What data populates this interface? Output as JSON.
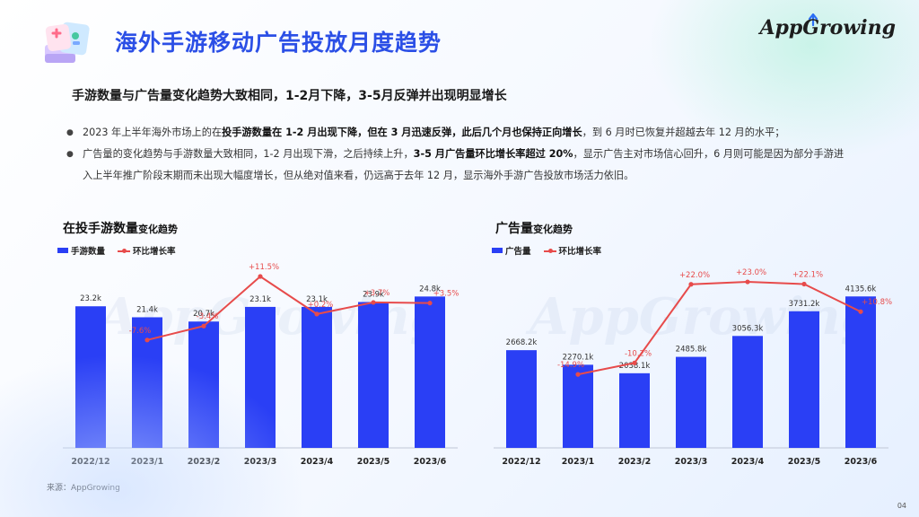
{
  "header": {
    "title": "海外手游移动广告投放月度趋势",
    "brand": "AppGrowing"
  },
  "subtitle": "手游数量与广告量变化趋势大致相同，1-2月下降，3-5月反弹并出现明显增长",
  "bullets": [
    [
      {
        "t": "2023 年上半年海外市场上的在",
        "b": false
      },
      {
        "t": "投手游数量在 1-2 月出现下降，但在 3 月迅速反弹，此后几个月也保持正向增长",
        "b": true
      },
      {
        "t": "，到 6 月时已恢复并超越去年 12 月的水平；",
        "b": false
      }
    ],
    [
      {
        "t": "广告量的变化趋势与手游数量大致相同，1-2 月出现下滑，之后持续上升，",
        "b": false
      },
      {
        "t": "3-5 月广告量环比增长率超过 20%",
        "b": true
      },
      {
        "t": "，显示广告主对市场信心回升，6 月则可能是因为部分手游进入上半年推广阶段末期而未出现大幅度增长，但从绝对值来看，仍远高于去年 12 月，显示海外手游广告投放市场活力依旧。",
        "b": false
      }
    ]
  ],
  "charts": [
    {
      "title_main": "在投手游数量",
      "title_small": "变化趋势",
      "legend_bar": "手游数量",
      "legend_line": "环比增长率"
    },
    {
      "title_main": "广告量",
      "title_small": "变化趋势",
      "legend_bar": "广告量",
      "legend_line": "环比增长率"
    }
  ],
  "chart_data": [
    {
      "type": "bar",
      "categories": [
        "2022/12",
        "2023/1",
        "2023/2",
        "2023/3",
        "2023/4",
        "2023/5",
        "2023/6"
      ],
      "series": [
        {
          "name": "手游数量",
          "type": "bar",
          "values": [
            23.2,
            21.4,
            20.7,
            23.1,
            23.1,
            23.9,
            24.8
          ],
          "labels": [
            "23.2k",
            "21.4k",
            "20.7k",
            "23.1k",
            "23.1k",
            "23.9k",
            "24.8k"
          ]
        },
        {
          "name": "环比增长率",
          "type": "line",
          "values": [
            null,
            -7.6,
            -3.4,
            11.5,
            0.2,
            3.7,
            3.5
          ],
          "labels": [
            "",
            "-7.6%",
            "-3.4%",
            "+11.5%",
            "+0.2%",
            "+3.7%",
            "+3.5%"
          ]
        }
      ],
      "title": "在投手游数量变化趋势",
      "bar_range": [
        0,
        30
      ],
      "line_range": [
        -40,
        15
      ],
      "legend": "top-left",
      "grid": false
    },
    {
      "type": "bar",
      "categories": [
        "2022/12",
        "2023/1",
        "2023/2",
        "2023/3",
        "2023/4",
        "2023/5",
        "2023/6"
      ],
      "series": [
        {
          "name": "广告量",
          "type": "bar",
          "values": [
            2668.2,
            2270.1,
            2038.1,
            2485.8,
            3056.3,
            3731.2,
            4135.6
          ],
          "labels": [
            "2668.2k",
            "2270.1k",
            "2038.1k",
            "2485.8k",
            "3056.3k",
            "3731.2k",
            "4135.6k"
          ]
        },
        {
          "name": "环比增长率",
          "type": "line",
          "values": [
            null,
            -14.9,
            -10.2,
            22.0,
            23.0,
            22.1,
            10.8
          ],
          "labels": [
            "",
            "-14.9%",
            "-10.2%",
            "+22.0%",
            "+23.0%",
            "+22.1%",
            "+10.8%"
          ]
        }
      ],
      "title": "广告量变化趋势",
      "bar_range": [
        0,
        5000
      ],
      "line_range": [
        -45,
        30
      ],
      "legend": "top-left",
      "grid": false
    }
  ],
  "colors": {
    "bar": "#2a3ff5",
    "line": "#e74b4b",
    "title": "#2b4fe6"
  },
  "source": "来源：AppGrowing",
  "page_number": "04"
}
